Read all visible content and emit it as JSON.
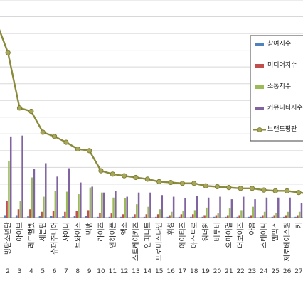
{
  "chart_data": {
    "type": "bar",
    "categories": [
      "방탄소년단",
      "아이브",
      "레드벨벳",
      "세븐틴",
      "슈퍼주니어",
      "샤이니",
      "트와이스",
      "빅뱅",
      "라이즈",
      "엔하이픈",
      "엑소",
      "스트레이키즈",
      "인피니트",
      "프로미스나인",
      "휘성",
      "에이티즈",
      "아스트로",
      "워너원",
      "비투비",
      "오마이걸",
      "더보이즈",
      "아홉",
      "스테이씨",
      "엔믹스",
      "제로베이스원",
      "키"
    ],
    "ranks": [
      "2",
      "3",
      "4",
      "5",
      "6",
      "7",
      "8",
      "9",
      "10",
      "11",
      "12",
      "13",
      "14",
      "15",
      "16",
      "17",
      "18",
      "19",
      "20",
      "21",
      "22",
      "23",
      "24",
      "25",
      "26",
      "27"
    ],
    "series": [
      {
        "name": "참여지수",
        "type": "bar",
        "color": "#4f81bd",
        "values": [
          3,
          3,
          2,
          2,
          2,
          2,
          2,
          2,
          1,
          1,
          1,
          1,
          1,
          1,
          1,
          1,
          1,
          1,
          1,
          1,
          1,
          1,
          1,
          1,
          1,
          1
        ]
      },
      {
        "name": "미디어지수",
        "type": "bar",
        "color": "#c0504d",
        "values": [
          20,
          10,
          10,
          7,
          8,
          7,
          8,
          9,
          6,
          5,
          4,
          4,
          4,
          4,
          3,
          4,
          4,
          3,
          3,
          3,
          3,
          3,
          3,
          3,
          3,
          3
        ]
      },
      {
        "name": "소통지수",
        "type": "bar",
        "color": "#9bbb59",
        "values": [
          68,
          20,
          48,
          25,
          32,
          31,
          28,
          36,
          30,
          24,
          23,
          16,
          13,
          10,
          7,
          8,
          9,
          12,
          5,
          11,
          9,
          13,
          7,
          6,
          7,
          7
        ]
      },
      {
        "name": "커뮤니티지수",
        "type": "bar",
        "color": "#8064a2",
        "values": [
          97,
          98,
          58,
          65,
          49,
          59,
          42,
          37,
          30,
          32,
          25,
          30,
          30,
          27,
          25,
          23,
          26,
          24,
          25,
          22,
          25,
          22,
          24,
          24,
          24,
          17
        ]
      },
      {
        "name": "브랜드평판",
        "type": "line",
        "color": "#8a8a3c",
        "values": [
          197,
          131,
          127,
          102,
          97,
          90,
          82,
          80,
          56,
          52,
          50,
          48,
          46,
          43,
          42,
          41,
          41,
          38,
          37,
          36,
          35,
          35,
          33,
          32,
          32,
          30
        ]
      }
    ],
    "ylim": [
      0,
      260
    ],
    "grid": true,
    "legend": "top-right"
  }
}
